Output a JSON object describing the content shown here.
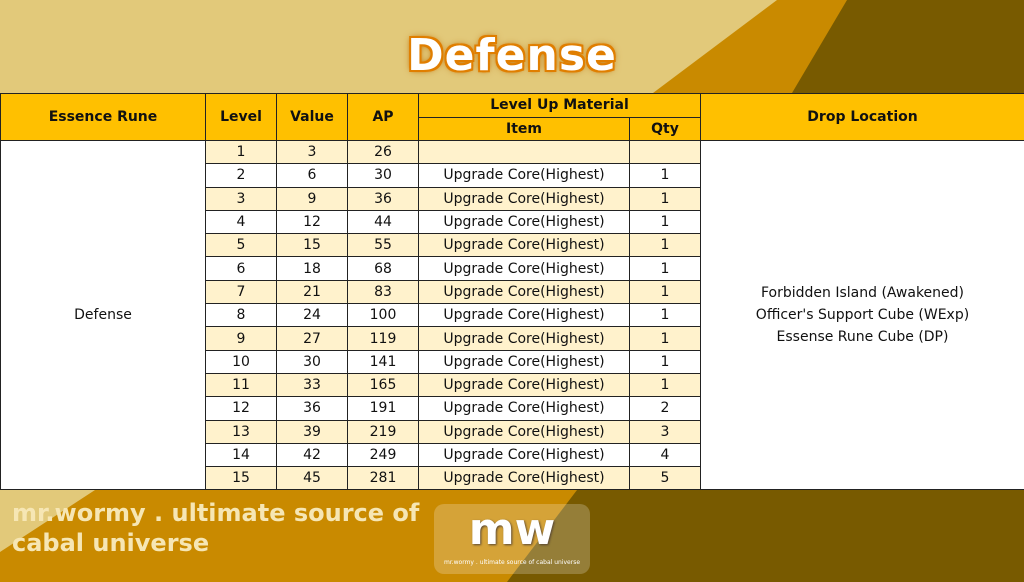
{
  "title": "Defense",
  "colors": {
    "header": "#ffc000",
    "row_alt": "#fff2cc",
    "tan": "#e2c97a",
    "orange": "#c98a00",
    "dark": "#785a00",
    "title_glow": "#e07f00"
  },
  "table": {
    "headers": {
      "essence_rune": "Essence Rune",
      "level": "Level",
      "value": "Value",
      "ap": "AP",
      "level_up_material": "Level Up Material",
      "item": "Item",
      "qty": "Qty",
      "drop_location": "Drop Location"
    },
    "essence_rune": "Defense",
    "drop_locations": [
      "Forbidden Island (Awakened)",
      "Officer's Support Cube (WExp)",
      "Essense Rune Cube (DP)"
    ],
    "rows": [
      {
        "level": "1",
        "value": "3",
        "ap": "26",
        "item": "",
        "qty": ""
      },
      {
        "level": "2",
        "value": "6",
        "ap": "30",
        "item": "Upgrade Core(Highest)",
        "qty": "1"
      },
      {
        "level": "3",
        "value": "9",
        "ap": "36",
        "item": "Upgrade Core(Highest)",
        "qty": "1"
      },
      {
        "level": "4",
        "value": "12",
        "ap": "44",
        "item": "Upgrade Core(Highest)",
        "qty": "1"
      },
      {
        "level": "5",
        "value": "15",
        "ap": "55",
        "item": "Upgrade Core(Highest)",
        "qty": "1"
      },
      {
        "level": "6",
        "value": "18",
        "ap": "68",
        "item": "Upgrade Core(Highest)",
        "qty": "1"
      },
      {
        "level": "7",
        "value": "21",
        "ap": "83",
        "item": "Upgrade Core(Highest)",
        "qty": "1"
      },
      {
        "level": "8",
        "value": "24",
        "ap": "100",
        "item": "Upgrade Core(Highest)",
        "qty": "1"
      },
      {
        "level": "9",
        "value": "27",
        "ap": "119",
        "item": "Upgrade Core(Highest)",
        "qty": "1"
      },
      {
        "level": "10",
        "value": "30",
        "ap": "141",
        "item": "Upgrade Core(Highest)",
        "qty": "1"
      },
      {
        "level": "11",
        "value": "33",
        "ap": "165",
        "item": "Upgrade Core(Highest)",
        "qty": "1"
      },
      {
        "level": "12",
        "value": "36",
        "ap": "191",
        "item": "Upgrade Core(Highest)",
        "qty": "2"
      },
      {
        "level": "13",
        "value": "39",
        "ap": "219",
        "item": "Upgrade Core(Highest)",
        "qty": "3"
      },
      {
        "level": "14",
        "value": "42",
        "ap": "249",
        "item": "Upgrade Core(Highest)",
        "qty": "4"
      },
      {
        "level": "15",
        "value": "45",
        "ap": "281",
        "item": "Upgrade Core(Highest)",
        "qty": "5"
      }
    ]
  },
  "logo": {
    "text": "mw",
    "tagline": "mr.wormy . ultimate source of cabal universe"
  },
  "watermark": "mr.wormy . ultimate source of cabal universe"
}
